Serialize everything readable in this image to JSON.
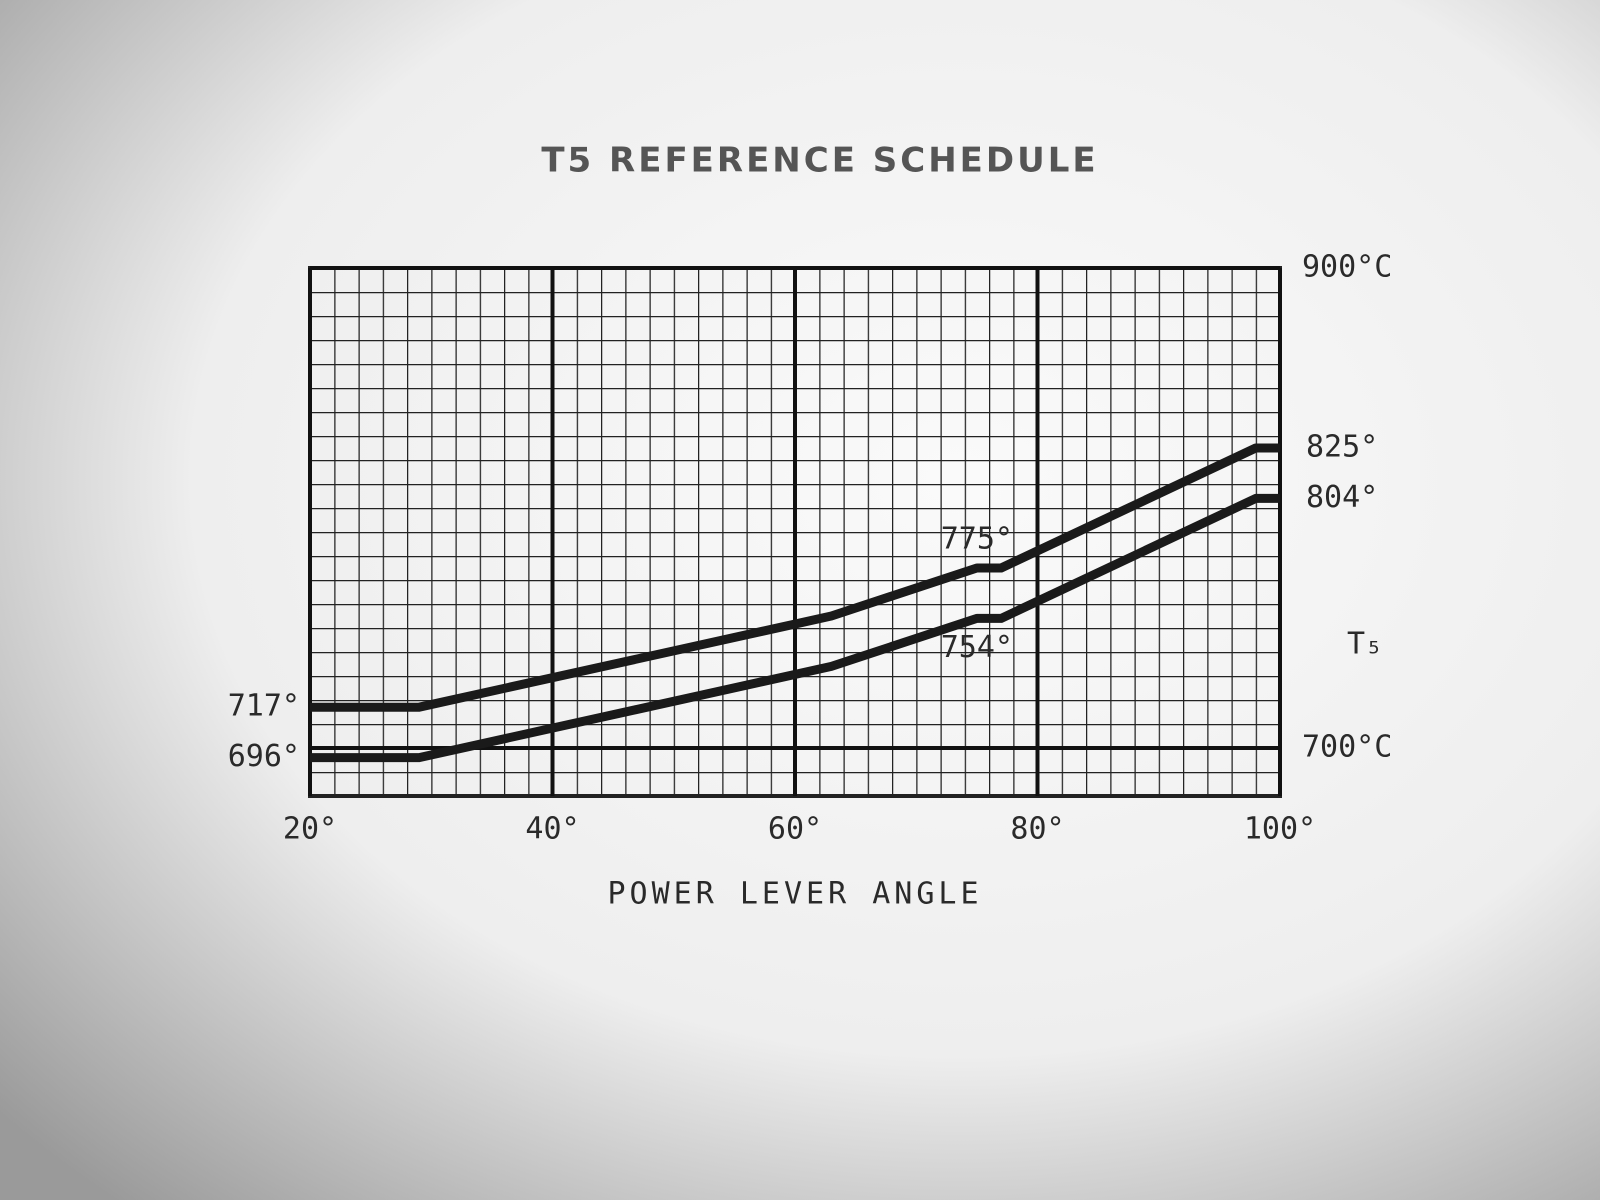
{
  "chart_data": {
    "type": "line",
    "title": "T5 REFERENCE SCHEDULE",
    "x_label": "POWER LEVER ANGLE",
    "y_label": "T₅",
    "x": [
      20,
      29,
      63,
      75,
      77,
      98,
      100
    ],
    "series": [
      {
        "color": "#1a1a1a",
        "values": [
          717,
          717,
          755,
          775,
          775,
          825,
          825
        ],
        "value_labels": [
          "717°",
          null,
          null,
          "775°",
          null,
          "825°",
          null
        ]
      },
      {
        "color": "#1a1a1a",
        "values": [
          696,
          696,
          734,
          754,
          754,
          804,
          804
        ],
        "value_labels": [
          "696°",
          null,
          null,
          "754°",
          null,
          "804°",
          null
        ]
      }
    ],
    "xlim": [
      20,
      100
    ],
    "xticks": [
      {
        "value": 20,
        "label": "20°"
      },
      {
        "value": 40,
        "label": "40°"
      },
      {
        "value": 60,
        "label": "60°"
      },
      {
        "value": 80,
        "label": "80°"
      },
      {
        "value": 100,
        "label": "100°"
      }
    ],
    "ylim": [
      680,
      900
    ],
    "yticks": [
      {
        "value": 700,
        "label": "700°C"
      },
      {
        "value": 900,
        "label": "900°C"
      }
    ],
    "grid": true
  }
}
